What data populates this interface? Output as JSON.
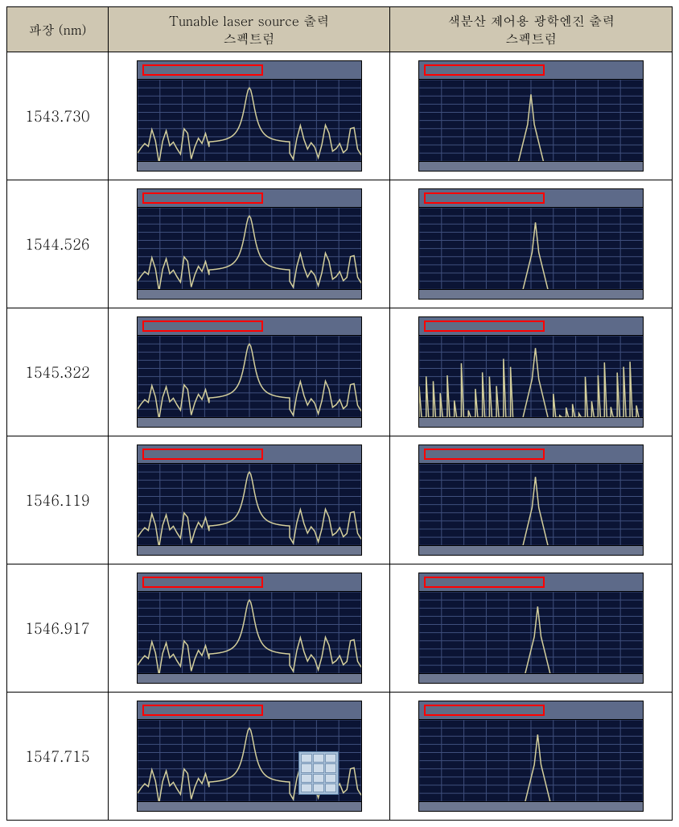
{
  "headers": {
    "col1": "파장 (nm)",
    "col2": "Tunable laser source 출력\n스펙트럼",
    "col3": "색분산 제어용 광학엔진 출력\n스펙트럼"
  },
  "header_bg": "#cfc7b2",
  "headerCols": {
    "col1_width": 126,
    "col2_width": 351,
    "col3_width": 351
  },
  "spectrum_style": {
    "screen_bg": "#0b1434",
    "top_bg": "#5d6a89",
    "trace_color_tls": "#d4cf9c",
    "trace_color_engine": "#d4cf9c",
    "grid_color": "#3f4f7d"
  },
  "rows": [
    {
      "wavelength": "1543.730",
      "tls": {
        "peak_x": 0.5,
        "baseline": 0.78,
        "peak_top": 0.1,
        "noise": 0.03,
        "style": "wide"
      },
      "engine": {
        "peak_x": 0.5,
        "baseline": 1.05,
        "peak_top": 0.18,
        "noise": 0.0,
        "style": "narrow"
      }
    },
    {
      "wavelength": "1544.526",
      "tls": {
        "peak_x": 0.5,
        "baseline": 0.78,
        "peak_top": 0.1,
        "noise": 0.03,
        "style": "wide"
      },
      "engine": {
        "peak_x": 0.52,
        "baseline": 1.05,
        "peak_top": 0.18,
        "noise": 0.0,
        "style": "narrow"
      }
    },
    {
      "wavelength": "1545.322",
      "tls": {
        "peak_x": 0.5,
        "baseline": 0.78,
        "peak_top": 0.1,
        "noise": 0.03,
        "style": "wide"
      },
      "engine": {
        "peak_x": 0.52,
        "baseline": 0.92,
        "peak_top": 0.15,
        "noise": 0.12,
        "style": "narrow_noisy"
      }
    },
    {
      "wavelength": "1546.119",
      "tls": {
        "peak_x": 0.5,
        "baseline": 0.78,
        "peak_top": 0.1,
        "noise": 0.03,
        "style": "wide"
      },
      "engine": {
        "peak_x": 0.52,
        "baseline": 1.05,
        "peak_top": 0.16,
        "noise": 0.0,
        "style": "narrow"
      }
    },
    {
      "wavelength": "1546.917",
      "tls": {
        "peak_x": 0.5,
        "baseline": 0.78,
        "peak_top": 0.1,
        "noise": 0.03,
        "style": "wide"
      },
      "engine": {
        "peak_x": 0.53,
        "baseline": 1.05,
        "peak_top": 0.18,
        "noise": 0.0,
        "style": "narrow"
      }
    },
    {
      "wavelength": "1547.715",
      "tls": {
        "peak_x": 0.5,
        "baseline": 0.78,
        "peak_top": 0.1,
        "noise": 0.03,
        "style": "wide",
        "keypad": true
      },
      "engine": {
        "peak_x": 0.53,
        "baseline": 1.05,
        "peak_top": 0.18,
        "noise": 0.0,
        "style": "narrow"
      }
    }
  ]
}
